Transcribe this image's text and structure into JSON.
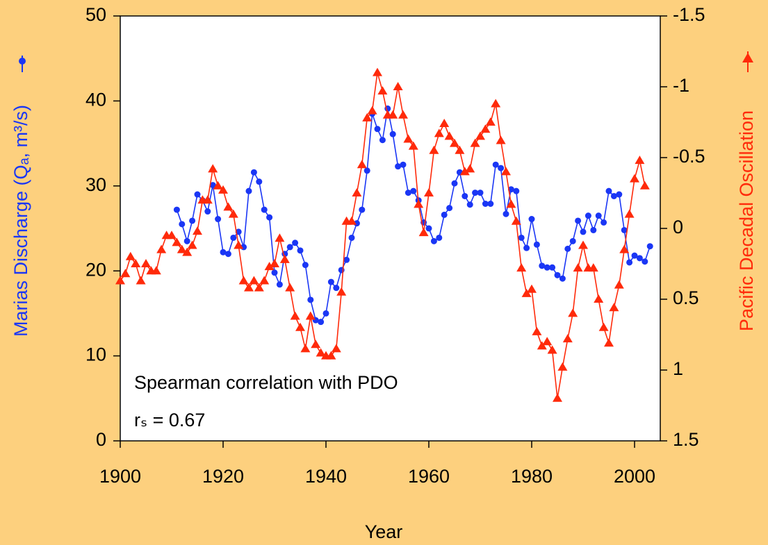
{
  "chart_data": {
    "type": "line",
    "xlabel": "Year",
    "ylabel": "Marias Discharge (Qₐ, m³/s)",
    "y2label": "Pacific Decadal Oscillation",
    "annotations": [
      "Spearman correlation with PDO",
      "rₛ = 0.67"
    ],
    "xlim": [
      1900,
      2005
    ],
    "xticks": [
      1900,
      1920,
      1940,
      1960,
      1980,
      2000
    ],
    "ylim": [
      0,
      50
    ],
    "yticks": [
      0,
      10,
      20,
      30,
      40,
      50
    ],
    "y2lim": [
      1.5,
      -1.5
    ],
    "y2ticks": [
      1.5,
      1,
      0.5,
      0,
      -0.5,
      -1,
      -1.5
    ],
    "series": [
      {
        "name": "Marias Discharge",
        "color": "#1a36f5",
        "marker": "circle",
        "x": [
          1911,
          1912,
          1913,
          1914,
          1915,
          1916,
          1917,
          1918,
          1919,
          1920,
          1921,
          1922,
          1923,
          1924,
          1925,
          1926,
          1927,
          1928,
          1929,
          1930,
          1931,
          1932,
          1933,
          1934,
          1935,
          1936,
          1937,
          1938,
          1939,
          1940,
          1941,
          1942,
          1943,
          1944,
          1945,
          1946,
          1947,
          1948,
          1949,
          1950,
          1951,
          1952,
          1953,
          1954,
          1955,
          1956,
          1957,
          1958,
          1959,
          1960,
          1961,
          1962,
          1963,
          1964,
          1965,
          1966,
          1967,
          1968,
          1969,
          1970,
          1971,
          1972,
          1973,
          1974,
          1975,
          1976,
          1977,
          1978,
          1979,
          1980,
          1981,
          1982,
          1983,
          1984,
          1985,
          1986,
          1987,
          1988,
          1989,
          1990,
          1991,
          1992,
          1993,
          1994,
          1995,
          1996,
          1997,
          1998,
          1999,
          2000,
          2001,
          2002,
          2003
        ],
        "values": [
          27.2,
          25.5,
          23.5,
          25.9,
          29.0,
          28.3,
          27.0,
          30.1,
          26.1,
          22.2,
          22.0,
          23.9,
          24.6,
          22.8,
          29.4,
          31.6,
          30.5,
          27.2,
          26.3,
          19.8,
          18.4,
          22.0,
          22.8,
          23.3,
          22.4,
          20.7,
          16.6,
          14.2,
          14.0,
          15.0,
          18.7,
          18.0,
          20.1,
          21.3,
          23.9,
          25.6,
          27.2,
          31.8,
          38.5,
          36.7,
          35.4,
          39.1,
          36.1,
          32.3,
          32.5,
          29.2,
          29.4,
          28.3,
          25.7,
          25.0,
          23.5,
          23.9,
          26.6,
          27.4,
          30.3,
          31.6,
          28.8,
          27.8,
          29.2,
          29.2,
          27.9,
          27.9,
          32.5,
          32.1,
          26.7,
          29.6,
          29.4,
          23.9,
          22.7,
          26.1,
          23.1,
          20.6,
          20.4,
          20.4,
          19.5,
          19.1,
          22.6,
          23.5,
          25.9,
          24.6,
          26.5,
          24.8,
          26.5,
          25.7,
          29.4,
          28.8,
          29.0,
          24.8,
          21.0,
          21.8,
          21.5,
          21.1,
          22.9
        ]
      },
      {
        "name": "Pacific Decadal Oscillation",
        "color": "#ff2a0a",
        "marker": "triangle",
        "axis": "y2",
        "x": [
          1900,
          1901,
          1902,
          1903,
          1904,
          1905,
          1906,
          1907,
          1908,
          1909,
          1910,
          1911,
          1912,
          1913,
          1914,
          1915,
          1916,
          1917,
          1918,
          1919,
          1920,
          1921,
          1922,
          1923,
          1924,
          1925,
          1926,
          1927,
          1928,
          1929,
          1930,
          1931,
          1932,
          1933,
          1934,
          1935,
          1936,
          1937,
          1938,
          1939,
          1940,
          1941,
          1942,
          1943,
          1944,
          1945,
          1946,
          1947,
          1948,
          1949,
          1950,
          1951,
          1952,
          1953,
          1954,
          1955,
          1956,
          1957,
          1958,
          1959,
          1960,
          1961,
          1962,
          1963,
          1964,
          1965,
          1966,
          1967,
          1968,
          1969,
          1970,
          1971,
          1972,
          1973,
          1974,
          1975,
          1976,
          1977,
          1978,
          1979,
          1980,
          1981,
          1982,
          1983,
          1984,
          1985,
          1986,
          1987,
          1988,
          1989,
          1990,
          1991,
          1992,
          1993,
          1994,
          1995,
          1996,
          1997,
          1998,
          1999,
          2000,
          2001,
          2002
        ],
        "values": [
          0.37,
          0.32,
          0.2,
          0.25,
          0.37,
          0.25,
          0.3,
          0.3,
          0.15,
          0.05,
          0.05,
          0.1,
          0.15,
          0.17,
          0.12,
          0.02,
          -0.2,
          -0.2,
          -0.42,
          -0.3,
          -0.27,
          -0.15,
          -0.1,
          0.12,
          0.37,
          0.42,
          0.37,
          0.42,
          0.37,
          0.27,
          0.25,
          0.07,
          0.22,
          0.42,
          0.62,
          0.7,
          0.85,
          0.62,
          0.82,
          0.88,
          0.9,
          0.9,
          0.85,
          0.45,
          -0.05,
          -0.05,
          -0.25,
          -0.45,
          -0.78,
          -0.83,
          -1.1,
          -0.97,
          -0.8,
          -0.8,
          -1.0,
          -0.8,
          -0.63,
          -0.58,
          -0.17,
          0.03,
          -0.25,
          -0.55,
          -0.67,
          -0.74,
          -0.65,
          -0.6,
          -0.55,
          -0.4,
          -0.42,
          -0.6,
          -0.65,
          -0.7,
          -0.75,
          -0.88,
          -0.62,
          -0.4,
          -0.17,
          -0.05,
          0.28,
          0.46,
          0.43,
          0.73,
          0.83,
          0.8,
          0.86,
          1.2,
          0.98,
          0.78,
          0.6,
          0.28,
          0.12,
          0.28,
          0.28,
          0.5,
          0.7,
          0.81,
          0.56,
          0.4,
          0.15,
          -0.1,
          -0.35,
          -0.48,
          -0.3
        ]
      }
    ]
  }
}
